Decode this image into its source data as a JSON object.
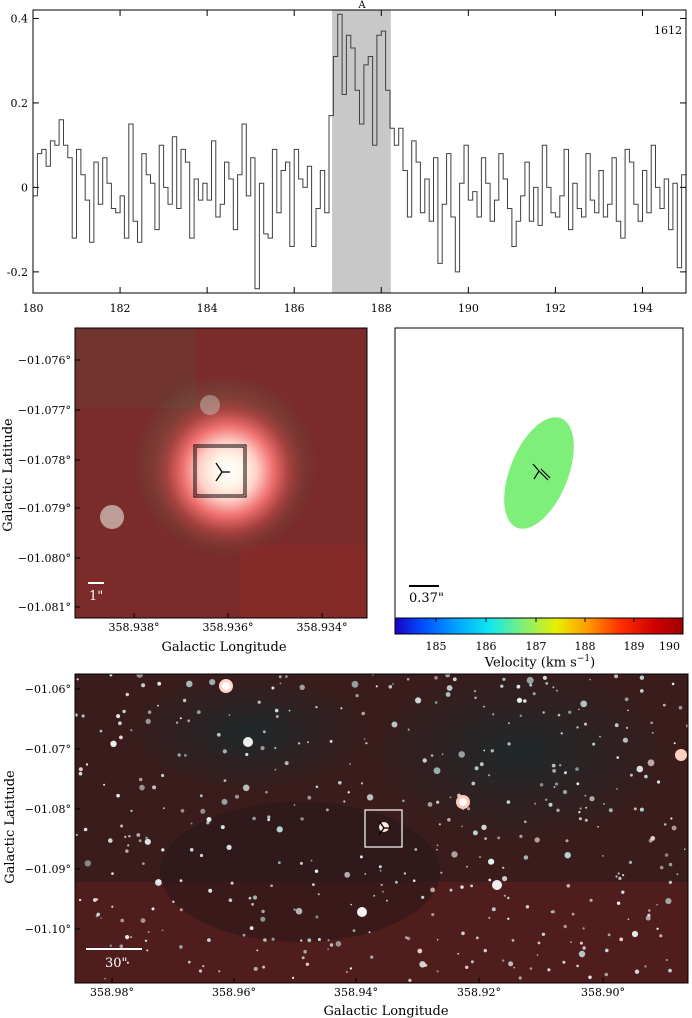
{
  "chart_data": [
    {
      "type": "line",
      "annotation_top": "A",
      "annotation_right": "1612",
      "xlim": [
        180,
        195
      ],
      "ylim": [
        -0.25,
        0.42
      ],
      "x_ticks": [
        180,
        182,
        184,
        186,
        188,
        190,
        192,
        194
      ],
      "y_ticks": [
        -0.2,
        0,
        0.2,
        0.4
      ],
      "y_tick_labels": [
        "-0.2",
        "0",
        "0.2",
        "0.4"
      ],
      "highlight_range": [
        186.87,
        188.22
      ],
      "highlight_color": "#c8c8c8",
      "x": [
        180.0,
        180.1,
        180.2,
        180.3,
        180.4,
        180.5,
        180.6,
        180.7,
        180.8,
        180.9,
        181.0,
        181.1,
        181.2,
        181.3,
        181.4,
        181.5,
        181.6,
        181.7,
        181.8,
        181.9,
        182.0,
        182.1,
        182.2,
        182.3,
        182.4,
        182.5,
        182.6,
        182.7,
        182.8,
        182.9,
        183.0,
        183.1,
        183.2,
        183.3,
        183.4,
        183.5,
        183.6,
        183.7,
        183.8,
        183.9,
        184.0,
        184.1,
        184.2,
        184.3,
        184.4,
        184.5,
        184.6,
        184.7,
        184.8,
        184.9,
        185.0,
        185.1,
        185.2,
        185.3,
        185.4,
        185.5,
        185.6,
        185.7,
        185.8,
        185.9,
        186.0,
        186.1,
        186.2,
        186.3,
        186.4,
        186.5,
        186.6,
        186.7,
        186.8,
        186.9,
        187.0,
        187.1,
        187.2,
        187.3,
        187.4,
        187.5,
        187.6,
        187.7,
        187.8,
        187.9,
        188.0,
        188.1,
        188.2,
        188.3,
        188.4,
        188.5,
        188.6,
        188.7,
        188.8,
        188.9,
        189.0,
        189.1,
        189.2,
        189.3,
        189.4,
        189.5,
        189.6,
        189.7,
        189.8,
        189.9,
        190.0,
        190.1,
        190.2,
        190.3,
        190.4,
        190.5,
        190.6,
        190.7,
        190.8,
        190.9,
        191.0,
        191.1,
        191.2,
        191.3,
        191.4,
        191.5,
        191.6,
        191.7,
        191.8,
        191.9,
        192.0,
        192.1,
        192.2,
        192.3,
        192.4,
        192.5,
        192.6,
        192.7,
        192.8,
        192.9,
        193.0,
        193.1,
        193.2,
        193.3,
        193.4,
        193.5,
        193.6,
        193.7,
        193.8,
        193.9,
        194.0,
        194.1,
        194.2,
        194.3,
        194.4,
        194.5,
        194.6,
        194.7,
        194.8,
        194.9
      ],
      "y": [
        -0.02,
        0.08,
        0.09,
        0.05,
        0.11,
        0.1,
        0.16,
        0.1,
        0.07,
        -0.12,
        0.09,
        0.03,
        -0.03,
        -0.13,
        0.06,
        -0.04,
        0.07,
        0.01,
        -0.05,
        -0.06,
        -0.02,
        -0.12,
        0.15,
        -0.08,
        -0.13,
        0.08,
        0.03,
        0.01,
        -0.1,
        0.1,
        0.0,
        -0.04,
        0.12,
        -0.05,
        0.09,
        0.06,
        -0.12,
        0.02,
        -0.03,
        0.01,
        -0.03,
        0.11,
        -0.07,
        -0.04,
        0.06,
        0.02,
        -0.1,
        0.03,
        0.15,
        -0.02,
        0.07,
        -0.24,
        0.01,
        -0.11,
        -0.12,
        0.09,
        -0.06,
        0.04,
        0.06,
        -0.14,
        0.09,
        0.02,
        0.0,
        0.05,
        -0.14,
        -0.05,
        0.04,
        -0.06,
        0.17,
        0.31,
        0.41,
        0.22,
        0.36,
        0.33,
        0.23,
        0.15,
        0.29,
        0.31,
        0.1,
        0.36,
        0.37,
        0.23,
        0.14,
        0.1,
        0.14,
        0.04,
        -0.07,
        0.11,
        0.06,
        -0.06,
        0.02,
        -0.08,
        0.07,
        -0.18,
        -0.04,
        0.08,
        -0.07,
        -0.2,
        0.01,
        0.1,
        -0.03,
        -0.01,
        -0.07,
        0.07,
        0.01,
        -0.08,
        -0.03,
        0.08,
        0.02,
        -0.05,
        -0.14,
        -0.08,
        -0.02,
        0.06,
        -0.08,
        0.0,
        -0.09,
        0.1,
        0.0,
        -0.06,
        -0.07,
        -0.02,
        0.09,
        -0.1,
        0.01,
        -0.05,
        -0.07,
        0.08,
        -0.03,
        -0.06,
        0.04,
        -0.07,
        -0.04,
        0.07,
        -0.08,
        -0.12,
        0.09,
        0.06,
        -0.04,
        -0.08,
        0.04,
        -0.06,
        0.1,
        0.0,
        -0.05,
        0.02,
        -0.1,
        0.01,
        -0.19,
        0.03
      ],
      "line_color": "#404040"
    },
    {
      "type": "heatmap",
      "xlabel": "Galactic Longitude",
      "ylabel": "Galactic Latitude",
      "x_tick_labels": [
        "358.938°",
        "358.936°",
        "358.934°"
      ],
      "y_tick_labels": [
        "−01.076°",
        "−01.077°",
        "−01.078°",
        "−01.079°",
        "−01.080°",
        "−01.081°"
      ],
      "scale_bar_label": "1\""
    },
    {
      "type": "scatter",
      "scale_bar_label": "0.37\"",
      "ellipse_color": "#7ef07a",
      "colorbar": {
        "label_main": "Velocity (km s",
        "label_sup": "−1",
        "label_close": ")",
        "tick_labels": [
          "185",
          "186",
          "187",
          "188",
          "189",
          "190"
        ],
        "colors": [
          "#1a00c8",
          "#0050ff",
          "#00a8ff",
          "#10e8f0",
          "#7af07a",
          "#e8f000",
          "#ff9a00",
          "#ff3000",
          "#d00000",
          "#a00000"
        ]
      }
    },
    {
      "type": "heatmap",
      "xlabel": "Galactic Longitude",
      "ylabel": "Galactic Latitude",
      "x_tick_labels": [
        "358.98°",
        "358.96°",
        "358.94°",
        "358.92°",
        "358.90°"
      ],
      "y_tick_labels": [
        "−01.06°",
        "−01.07°",
        "−01.08°",
        "−01.09°",
        "−01.10°"
      ],
      "scale_bar_label": "30\""
    }
  ]
}
